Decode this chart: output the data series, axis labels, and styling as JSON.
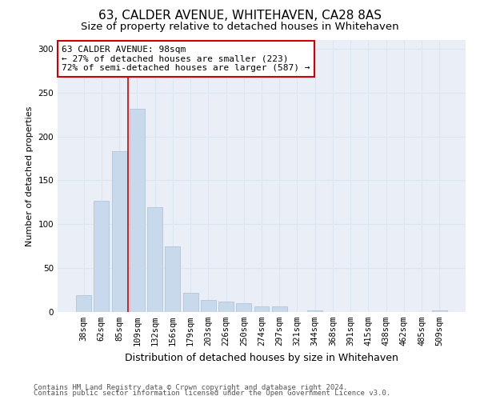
{
  "title1": "63, CALDER AVENUE, WHITEHAVEN, CA28 8AS",
  "title2": "Size of property relative to detached houses in Whitehaven",
  "xlabel": "Distribution of detached houses by size in Whitehaven",
  "ylabel": "Number of detached properties",
  "categories": [
    "38sqm",
    "62sqm",
    "85sqm",
    "109sqm",
    "132sqm",
    "156sqm",
    "179sqm",
    "203sqm",
    "226sqm",
    "250sqm",
    "274sqm",
    "297sqm",
    "321sqm",
    "344sqm",
    "368sqm",
    "391sqm",
    "415sqm",
    "438sqm",
    "462sqm",
    "485sqm",
    "509sqm"
  ],
  "values": [
    19,
    127,
    183,
    232,
    119,
    75,
    22,
    14,
    12,
    10,
    6,
    6,
    0,
    2,
    0,
    0,
    0,
    0,
    0,
    0,
    2
  ],
  "bar_color": "#c9d9ec",
  "bar_edge_color": "#a8bfd8",
  "vline_x": 2.5,
  "vline_color": "#cc0000",
  "annotation_text": "63 CALDER AVENUE: 98sqm\n← 27% of detached houses are smaller (223)\n72% of semi-detached houses are larger (587) →",
  "annotation_box_color": "#ffffff",
  "annotation_box_edge_color": "#cc0000",
  "ylim": [
    0,
    310
  ],
  "yticks": [
    0,
    50,
    100,
    150,
    200,
    250,
    300
  ],
  "footer1": "Contains HM Land Registry data © Crown copyright and database right 2024.",
  "footer2": "Contains public sector information licensed under the Open Government Licence v3.0.",
  "grid_color": "#dce6f0",
  "bg_color": "#eaeff7",
  "title1_fontsize": 11,
  "title2_fontsize": 9.5,
  "xlabel_fontsize": 9,
  "ylabel_fontsize": 8,
  "tick_fontsize": 7.5,
  "annot_fontsize": 8,
  "footer_fontsize": 6.5
}
